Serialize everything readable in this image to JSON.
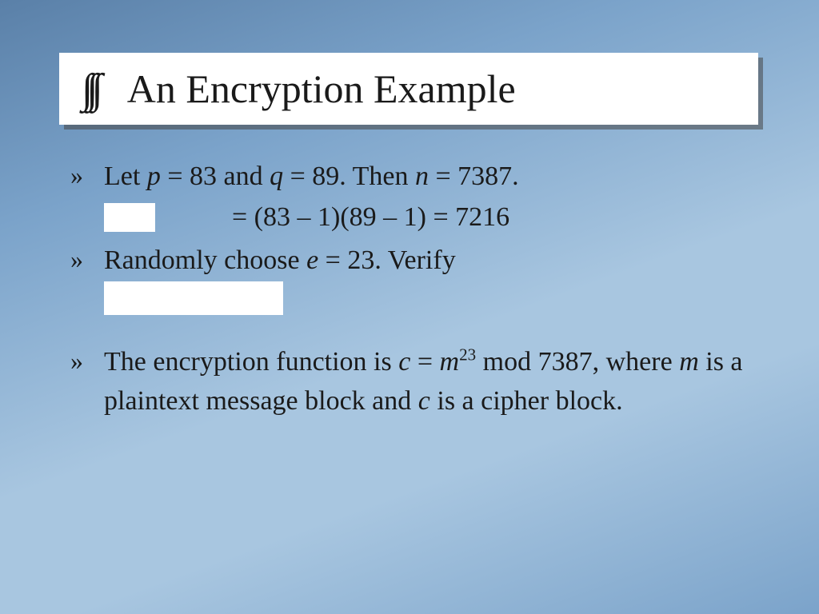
{
  "background_gradient": [
    "#5a80a8",
    "#7ba3ca",
    "#a8c6e0"
  ],
  "text_color": "#1a1a1a",
  "title": {
    "icon_glyph": "∫∫∫",
    "text": "An Encryption Example",
    "box_bg": "#ffffff",
    "shadow_color": "rgba(70,70,70,0.55)",
    "fontsize": 50
  },
  "bullet_marker": "»",
  "body_fontsize": 34,
  "items": [
    {
      "line1_parts": [
        "Let ",
        "p",
        " = 83 and ",
        "q",
        " = 89.  Then ",
        "n",
        " = 7387."
      ],
      "subline_eq": "= (83 – 1)(89 – 1) = 7216",
      "blank_w": 64,
      "blank_h": 36
    },
    {
      "line1_parts": [
        "Randomly choose ",
        "e",
        " = 23.  Verify"
      ],
      "blank_w": 224,
      "blank_h": 42
    },
    {
      "plain_before": "The encryption function is ",
      "var_c": "c",
      "eq": " = ",
      "var_m": "m",
      "sup": "23",
      "after_sup": " mod 7387, where ",
      "var_m2": "m",
      "mid": " is a plaintext message block and ",
      "var_c2": "c",
      "tail": " is a cipher block."
    }
  ],
  "blank_box_bg": "#ffffff"
}
